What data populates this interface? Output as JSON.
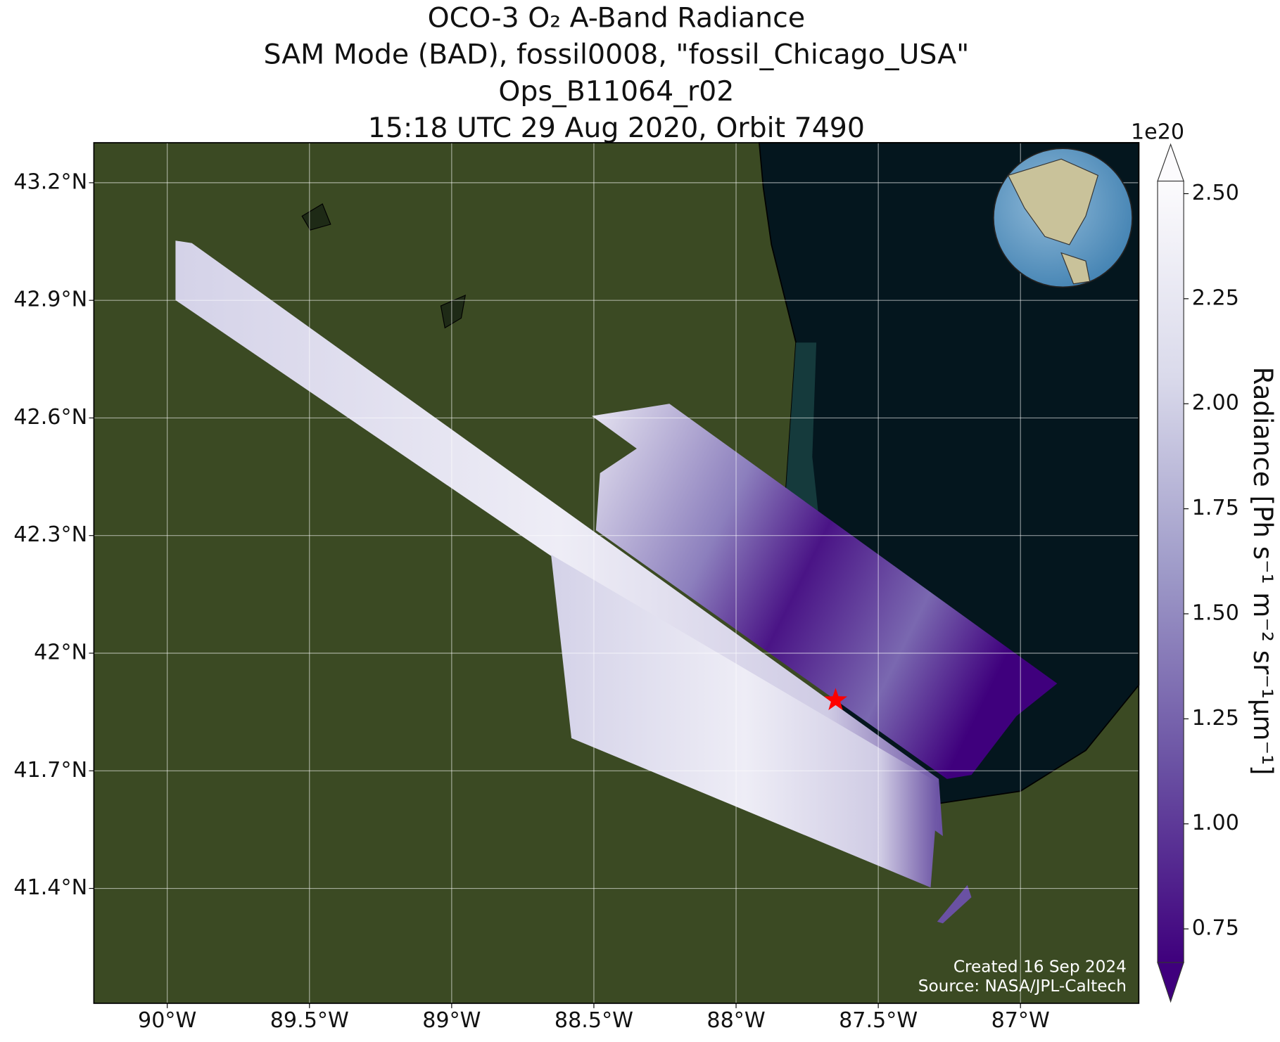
{
  "chart_data": {
    "type": "map",
    "title": [
      "OCO-3 O₂ A-Band Radiance",
      "SAM Mode (BAD), fossil0008, \"fossil_Chicago_USA\"",
      "Ops_B11064_r02",
      "15:18 UTC 29 Aug 2020, Orbit 7490"
    ],
    "xlim": [
      -90.258,
      -86.584
    ],
    "xticks": [
      {
        "value": -90,
        "label": "90°W"
      },
      {
        "value": -89.5,
        "label": "89.5°W"
      },
      {
        "value": -89,
        "label": "89°W"
      },
      {
        "value": -88.5,
        "label": "88.5°W"
      },
      {
        "value": -88,
        "label": "88°W"
      },
      {
        "value": -87.5,
        "label": "87.5°W"
      },
      {
        "value": -87,
        "label": "87°W"
      }
    ],
    "ylim": [
      41.107,
      43.302
    ],
    "yticks": [
      {
        "value": 41.4,
        "label": "41.4°N"
      },
      {
        "value": 41.7,
        "label": "41.7°N"
      },
      {
        "value": 42,
        "label": "42°N"
      },
      {
        "value": 42.3,
        "label": "42.3°N"
      },
      {
        "value": 42.6,
        "label": "42.6°N"
      },
      {
        "value": 42.9,
        "label": "42.9°N"
      },
      {
        "value": 43.2,
        "label": "43.2°N"
      }
    ],
    "grid": true,
    "target": {
      "lon": -87.65,
      "lat": 41.88,
      "color": "#ff0000"
    },
    "colorbar": {
      "label": "Radiance [Ph s⁻¹ m⁻² sr⁻¹μm⁻¹]",
      "scale_label": "1e20",
      "clim": [
        0.67,
        2.53
      ],
      "ticks": [
        0.75,
        {
          "value": 1,
          "label": "1.00"
        },
        1.25,
        {
          "value": 1.5,
          "label": "1.50"
        },
        1.75,
        {
          "value": 2,
          "label": "2.00"
        },
        2.25,
        {
          "value": 2.5,
          "label": "2.50"
        }
      ]
    },
    "credits": [
      "Created 16 Sep 2024",
      "Source: NASA/JPL-Caltech"
    ]
  }
}
